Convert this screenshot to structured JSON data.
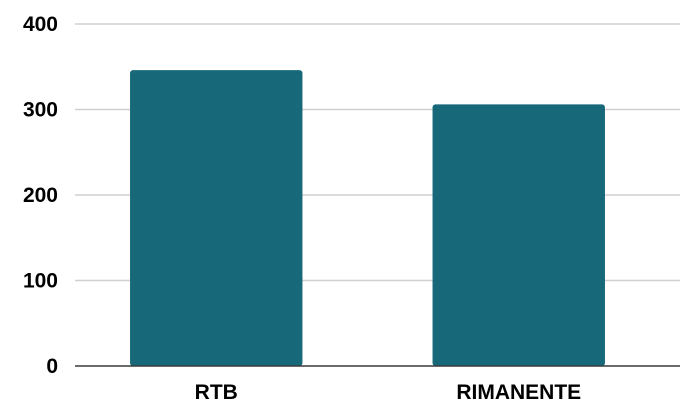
{
  "chart_data": {
    "type": "bar",
    "title": "",
    "xlabel": "",
    "ylabel": "",
    "categories": [
      "RTB",
      "RIMANENTE"
    ],
    "values": [
      346,
      306
    ],
    "ylim": [
      0,
      400
    ],
    "yticks": [
      "0",
      "100",
      "200",
      "300",
      "400"
    ],
    "grid": true,
    "legend": "none",
    "bar_color": "#17697a"
  }
}
